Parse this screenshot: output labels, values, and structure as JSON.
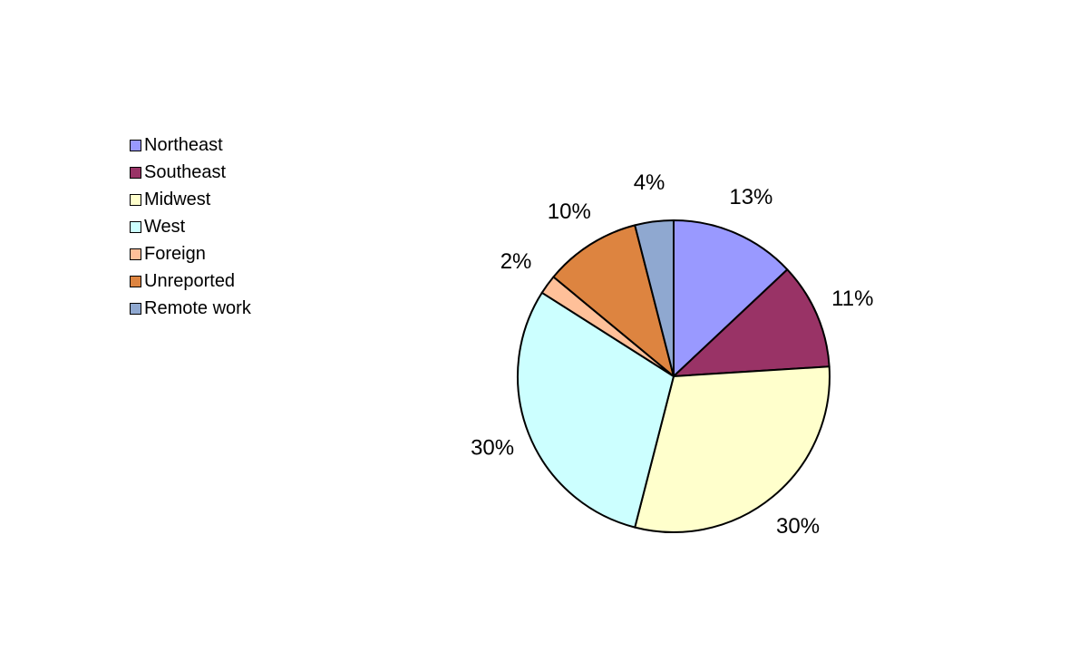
{
  "chart_data": {
    "type": "pie",
    "title": "",
    "categories": [
      "Northeast",
      "Southeast",
      "Midwest",
      "West",
      "Foreign",
      "Unreported",
      "Remote work"
    ],
    "values": [
      13,
      11,
      30,
      30,
      2,
      10,
      4
    ],
    "labels": [
      "13%",
      "11%",
      "30%",
      "30%",
      "2%",
      "10%",
      "4%"
    ],
    "colors": [
      "#9999ff",
      "#993366",
      "#ffffcc",
      "#ccffff",
      "#ffc099",
      "#dd8440",
      "#8fa8d0"
    ],
    "start_angle": "12 o'clock",
    "direction": "clockwise",
    "legend_position": "left"
  }
}
